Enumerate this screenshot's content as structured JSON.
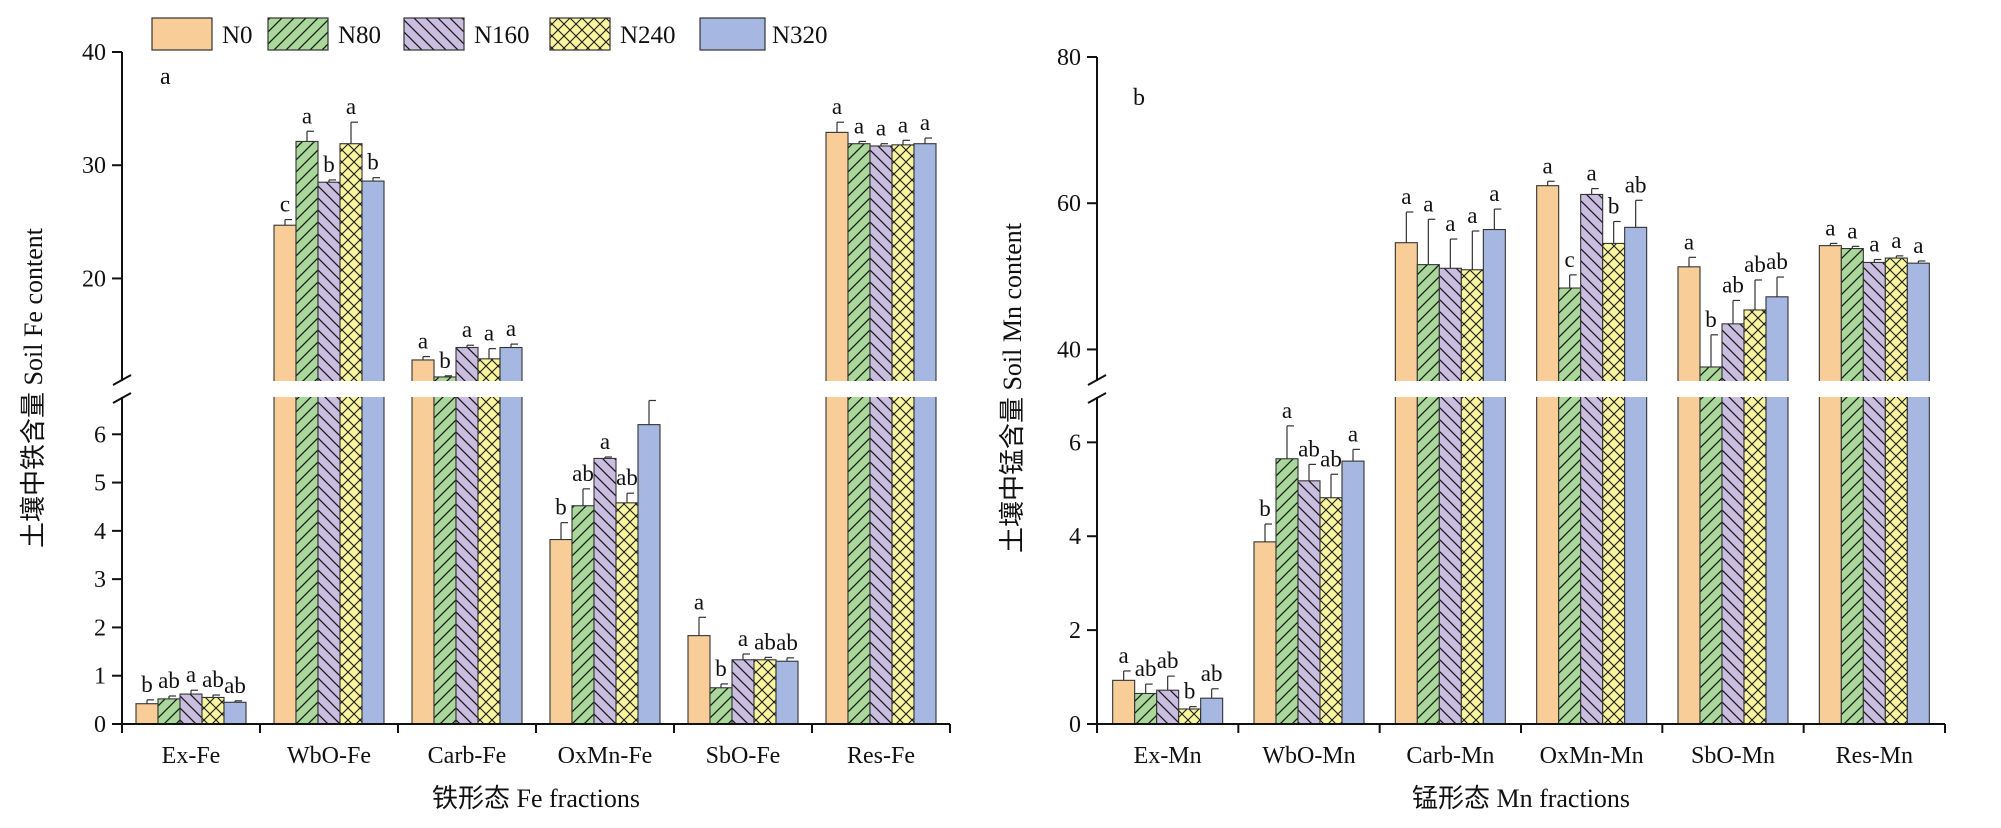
{
  "legend": [
    {
      "label": "N0"
    },
    {
      "label": "N80"
    },
    {
      "label": "N160"
    },
    {
      "label": "N240"
    },
    {
      "label": "N320"
    }
  ],
  "chart_data": [
    {
      "type": "bar",
      "panel_letter": "a",
      "xlabel": "铁形态 Fe fractions",
      "ylabel": "土壤中铁含量 Soil Fe content",
      "categories": [
        "Ex-Fe",
        "WbO-Fe",
        "Carb-Fe",
        "OxMn-Fe",
        "SbO-Fe",
        "Res-Fe"
      ],
      "axis_break": true,
      "lower_axis": {
        "range": [
          0,
          7
        ],
        "ticks": [
          0,
          1,
          2,
          3,
          4,
          5,
          6
        ]
      },
      "upper_axis": {
        "range": [
          10.5,
          40
        ],
        "ticks": [
          20,
          30,
          40
        ]
      },
      "series": [
        {
          "name": "N0",
          "values": [
            0.42,
            24.7,
            12.8,
            3.82,
            1.83,
            32.9
          ],
          "errors": [
            0.08,
            0.5,
            0.3,
            0.35,
            0.38,
            0.9
          ],
          "letters": [
            "b",
            "c",
            "a",
            "b",
            "a",
            "a"
          ]
        },
        {
          "name": "N80",
          "values": [
            0.52,
            32.1,
            11.3,
            4.52,
            0.75,
            31.9
          ],
          "errors": [
            0.06,
            0.9,
            0.1,
            0.35,
            0.08,
            0.2
          ],
          "letters": [
            "ab",
            "a",
            "b",
            "ab",
            "b",
            "a"
          ]
        },
        {
          "name": "N160",
          "values": [
            0.62,
            28.5,
            13.9,
            5.5,
            1.33,
            31.7
          ],
          "errors": [
            0.08,
            0.2,
            0.2,
            0.03,
            0.12,
            0.2
          ],
          "letters": [
            "a",
            "b",
            "a",
            "a",
            "a",
            "a"
          ]
        },
        {
          "name": "N240",
          "values": [
            0.55,
            31.9,
            12.9,
            4.58,
            1.33,
            31.8
          ],
          "errors": [
            0.05,
            1.9,
            0.9,
            0.2,
            0.05,
            0.4
          ],
          "letters": [
            "ab",
            "a",
            "a",
            "ab",
            "ab",
            "a"
          ]
        },
        {
          "name": "N320",
          "values": [
            0.45,
            28.6,
            13.9,
            6.2,
            1.3,
            31.9
          ],
          "errors": [
            0.03,
            0.3,
            0.3,
            0.5,
            0.07,
            0.5
          ],
          "letters": [
            "ab",
            "b",
            "a",
            "a",
            "ab",
            "a"
          ]
        }
      ]
    },
    {
      "type": "bar",
      "panel_letter": "b",
      "xlabel": "锰形态 Mn fractions",
      "ylabel": "土壤中锰含量 Soil Mn content",
      "categories": [
        "Ex-Mn",
        "WbO-Mn",
        "Carb-Mn",
        "OxMn-Mn",
        "SbO-Mn",
        "Res-Mn"
      ],
      "axis_break": true,
      "lower_axis": {
        "range": [
          0,
          7.2
        ],
        "ticks": [
          0,
          2,
          4,
          6
        ]
      },
      "upper_axis": {
        "range": [
          35,
          80
        ],
        "ticks": [
          40,
          60,
          80
        ]
      },
      "series": [
        {
          "name": "N0",
          "values": [
            0.93,
            3.88,
            54.6,
            62.4,
            51.3,
            54.2
          ],
          "errors": [
            0.2,
            0.38,
            4.2,
            0.6,
            1.3,
            0.3
          ],
          "letters": [
            "a",
            "b",
            "a",
            "a",
            "a",
            "a"
          ]
        },
        {
          "name": "N80",
          "values": [
            0.65,
            5.65,
            51.6,
            48.4,
            37.6,
            53.8
          ],
          "errors": [
            0.2,
            0.7,
            6.2,
            1.8,
            4.4,
            0.3
          ],
          "letters": [
            "ab",
            "a",
            "a",
            "c",
            "b",
            "a"
          ]
        },
        {
          "name": "N160",
          "values": [
            0.72,
            5.18,
            51.1,
            61.2,
            43.5,
            51.9
          ],
          "errors": [
            0.3,
            0.35,
            4.0,
            0.8,
            3.2,
            0.4
          ],
          "letters": [
            "ab",
            "ab",
            "a",
            "a",
            "ab",
            "a"
          ]
        },
        {
          "name": "N240",
          "values": [
            0.32,
            4.82,
            50.9,
            54.5,
            45.4,
            52.5
          ],
          "errors": [
            0.05,
            0.5,
            5.3,
            3.0,
            4.1,
            0.3
          ],
          "letters": [
            "b",
            "ab",
            "a",
            "b",
            "ab",
            "a"
          ]
        },
        {
          "name": "N320",
          "values": [
            0.55,
            5.6,
            56.4,
            56.7,
            47.2,
            51.8
          ],
          "errors": [
            0.2,
            0.25,
            2.8,
            3.7,
            2.7,
            0.3
          ],
          "letters": [
            "ab",
            "a",
            "a",
            "ab",
            "ab",
            "a"
          ]
        }
      ]
    }
  ]
}
